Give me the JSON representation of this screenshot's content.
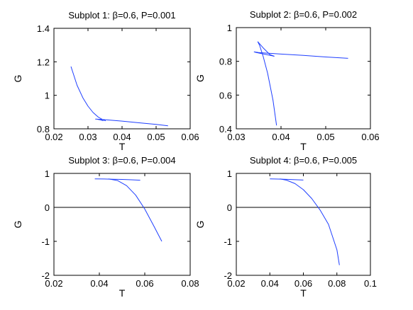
{
  "chart_data": [
    {
      "type": "line",
      "title": "Subplot 1: β=0.6, P=0.001",
      "xlabel": "T",
      "ylabel": "G",
      "xlim": [
        0.02,
        0.06
      ],
      "ylim": [
        0.8,
        1.4
      ],
      "xticks": [
        "0.02",
        "0.03",
        "0.04",
        "0.05",
        "0.06"
      ],
      "yticks": [
        "0.8",
        "1",
        "1.2",
        "1.4"
      ],
      "zero_line": false,
      "series": [
        {
          "color": "#1f3fff",
          "x": [
            0.025,
            0.0268,
            0.0285,
            0.03,
            0.0315,
            0.033,
            0.0345,
            0.0352
          ],
          "y": [
            1.172,
            1.06,
            0.985,
            0.935,
            0.897,
            0.87,
            0.853,
            0.848
          ]
        },
        {
          "color": "#1f3fff",
          "x": [
            0.0345,
            0.0335,
            0.0325,
            0.0322,
            0.034,
            0.04,
            0.045,
            0.05,
            0.0535
          ],
          "y": [
            0.848,
            0.854,
            0.858,
            0.858,
            0.856,
            0.846,
            0.836,
            0.826,
            0.818
          ]
        }
      ]
    },
    {
      "type": "line",
      "title": "Subplot 2: β=0.6, P=0.002",
      "xlabel": "T",
      "ylabel": "G",
      "xlim": [
        0.03,
        0.06
      ],
      "ylim": [
        0.4,
        1.0
      ],
      "xticks": [
        "0.03",
        "0.04",
        "0.05",
        "0.06"
      ],
      "yticks": [
        "0.4",
        "0.6",
        "0.8",
        "1"
      ],
      "zero_line": false,
      "series": [
        {
          "color": "#1f3fff",
          "x": [
            0.039,
            0.0382,
            0.037,
            0.036,
            0.0352,
            0.0348
          ],
          "y": [
            0.42,
            0.57,
            0.73,
            0.83,
            0.895,
            0.917
          ]
        },
        {
          "color": "#1f3fff",
          "x": [
            0.0348,
            0.036,
            0.0375,
            0.0385
          ],
          "y": [
            0.917,
            0.88,
            0.84,
            0.83
          ]
        },
        {
          "color": "#1f3fff",
          "x": [
            0.0385,
            0.0365,
            0.0345,
            0.034,
            0.035,
            0.04,
            0.045,
            0.05,
            0.055
          ],
          "y": [
            0.83,
            0.842,
            0.852,
            0.856,
            0.852,
            0.843,
            0.835,
            0.826,
            0.818
          ]
        }
      ]
    },
    {
      "type": "line",
      "title": "Subplot 3: β=0.6, P=0.004",
      "xlabel": "T",
      "ylabel": "G",
      "xlim": [
        0.02,
        0.08
      ],
      "ylim": [
        -2,
        1
      ],
      "xticks": [
        "0.02",
        "0.04",
        "0.06",
        "0.08"
      ],
      "yticks": [
        "-2",
        "-1",
        "0",
        "1"
      ],
      "zero_line": true,
      "series": [
        {
          "color": "#1f3fff",
          "x": [
            0.038,
            0.042,
            0.046,
            0.05,
            0.054,
            0.058
          ],
          "y": [
            0.84,
            0.835,
            0.83,
            0.822,
            0.812,
            0.8
          ]
        },
        {
          "color": "#1f3fff",
          "x": [
            0.044,
            0.048,
            0.052,
            0.056,
            0.06,
            0.064,
            0.0675
          ],
          "y": [
            0.84,
            0.79,
            0.64,
            0.36,
            -0.05,
            -0.55,
            -1.0
          ]
        }
      ]
    },
    {
      "type": "line",
      "title": "Subplot 4: β=0.6, P=0.005",
      "xlabel": "T",
      "ylabel": "G",
      "xlim": [
        0.02,
        0.1
      ],
      "ylim": [
        -2,
        1
      ],
      "xticks": [
        "0.02",
        "0.04",
        "0.06",
        "0.08",
        "0.1"
      ],
      "yticks": [
        "-2",
        "-1",
        "0",
        "1"
      ],
      "zero_line": true,
      "series": [
        {
          "color": "#1f3fff",
          "x": [
            0.04,
            0.045,
            0.05,
            0.055,
            0.06
          ],
          "y": [
            0.84,
            0.833,
            0.825,
            0.815,
            0.805
          ]
        },
        {
          "color": "#1f3fff",
          "x": [
            0.046,
            0.05,
            0.055,
            0.06,
            0.065,
            0.07,
            0.075,
            0.08,
            0.0815
          ],
          "y": [
            0.84,
            0.8,
            0.7,
            0.52,
            0.26,
            -0.08,
            -0.5,
            -1.25,
            -1.7
          ]
        }
      ]
    }
  ]
}
